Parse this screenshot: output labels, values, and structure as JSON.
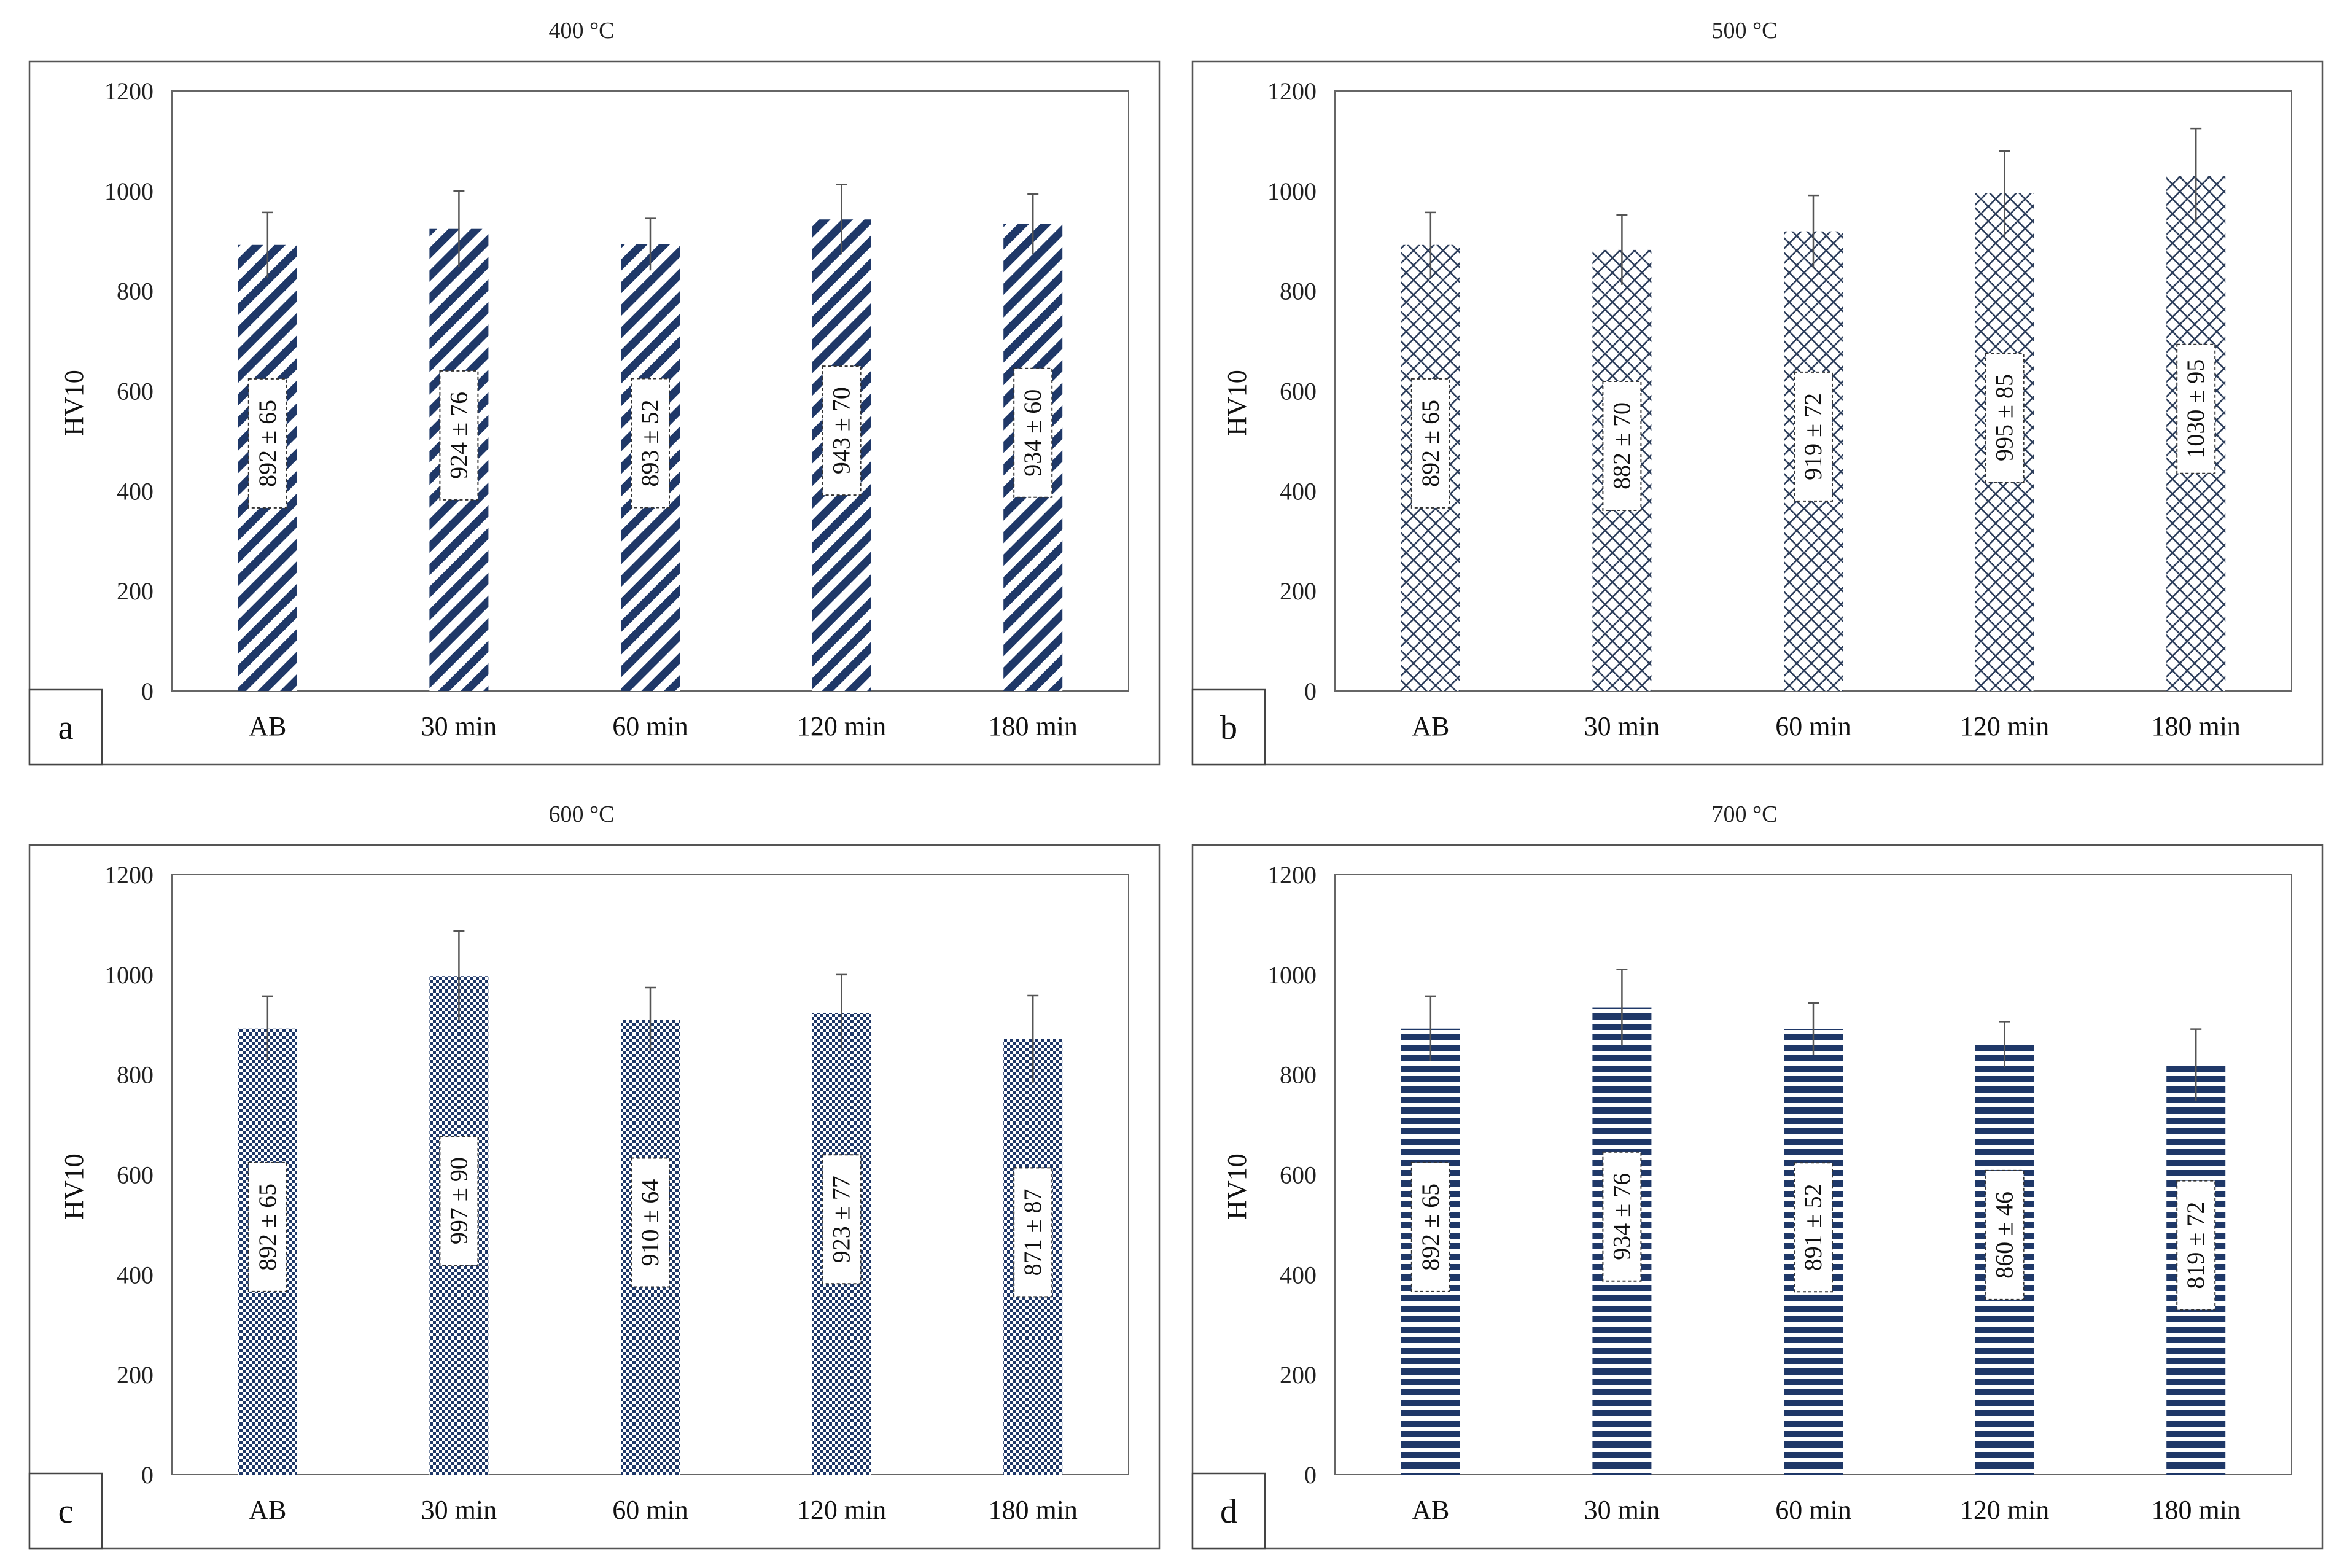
{
  "chart_data": [
    {
      "panel": "a",
      "type": "bar",
      "title": "400 °C",
      "ylabel": "HV10",
      "xlabel": "",
      "ylim": [
        0,
        1200
      ],
      "yticks": [
        0,
        200,
        400,
        600,
        800,
        1000,
        1200
      ],
      "categories": [
        "AB",
        "30 min",
        "60 min",
        "120 min",
        "180 min"
      ],
      "values": [
        892,
        924,
        893,
        943,
        934
      ],
      "errors": [
        65,
        76,
        52,
        70,
        60
      ],
      "labels": [
        "892 ± 65",
        "924 ± 76",
        "893 ± 52",
        "943 ± 70",
        "934 ± 60"
      ],
      "pattern": "diagonal",
      "color": "#1f3868"
    },
    {
      "panel": "b",
      "type": "bar",
      "title": "500 °C",
      "ylabel": "HV10",
      "xlabel": "",
      "ylim": [
        0,
        1200
      ],
      "yticks": [
        0,
        200,
        400,
        600,
        800,
        1000,
        1200
      ],
      "categories": [
        "AB",
        "30 min",
        "60 min",
        "120 min",
        "180 min"
      ],
      "values": [
        892,
        882,
        919,
        995,
        1030
      ],
      "errors": [
        65,
        70,
        72,
        85,
        95
      ],
      "labels": [
        "892 ± 65",
        "882 ± 70",
        "919 ± 72",
        "995 ± 85",
        "1030 ± 95"
      ],
      "pattern": "crosshatch",
      "color": "#2e3f5c"
    },
    {
      "panel": "c",
      "type": "bar",
      "title": "600 °C",
      "ylabel": "HV10",
      "xlabel": "",
      "ylim": [
        0,
        1200
      ],
      "yticks": [
        0,
        200,
        400,
        600,
        800,
        1000,
        1200
      ],
      "categories": [
        "AB",
        "30 min",
        "60 min",
        "120 min",
        "180 min"
      ],
      "values": [
        892,
        997,
        910,
        923,
        871
      ],
      "errors": [
        65,
        90,
        64,
        77,
        87
      ],
      "labels": [
        "892 ± 65",
        "997 ± 90",
        "910 ± 64",
        "923 ± 77",
        "871 ± 87"
      ],
      "pattern": "checker",
      "color": "#1f3868"
    },
    {
      "panel": "d",
      "type": "bar",
      "title": "700 °C",
      "ylabel": "HV10",
      "xlabel": "",
      "ylim": [
        0,
        1200
      ],
      "yticks": [
        0,
        200,
        400,
        600,
        800,
        1000,
        1200
      ],
      "categories": [
        "AB",
        "30 min",
        "60 min",
        "120 min",
        "180 min"
      ],
      "values": [
        892,
        934,
        891,
        860,
        819
      ],
      "errors": [
        65,
        76,
        52,
        46,
        72
      ],
      "labels": [
        "892 ± 65",
        "934 ± 76",
        "891 ± 52",
        "860 ± 46",
        "819 ± 72"
      ],
      "pattern": "horizontal",
      "color": "#1f3868"
    }
  ]
}
